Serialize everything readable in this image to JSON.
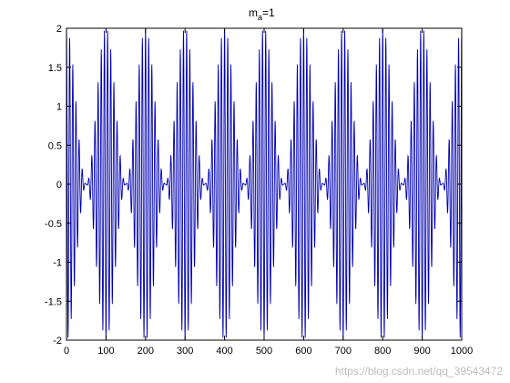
{
  "chart_data": {
    "type": "line",
    "title": "m_a=1",
    "title_main": "m",
    "title_subscript": "a",
    "title_rest": "=1",
    "xlabel": "",
    "ylabel": "",
    "xlim": [
      0,
      1000
    ],
    "ylim": [
      -2,
      2
    ],
    "x_ticks": [
      0,
      100,
      200,
      300,
      400,
      500,
      600,
      700,
      800,
      900,
      1000
    ],
    "x_tick_labels": [
      "0",
      "100",
      "200",
      "300",
      "400",
      "500",
      "600",
      "700",
      "800",
      "900",
      "1000"
    ],
    "y_ticks": [
      2,
      1.5,
      1,
      0.5,
      0,
      -0.5,
      -1,
      -1.5,
      -2
    ],
    "y_tick_labels": [
      "2",
      "1.5",
      "1",
      "0.5",
      "0",
      "-0.5",
      "-1",
      "-1.5",
      "-2"
    ],
    "grid": false,
    "legend": "none",
    "series": [
      {
        "formula": "y = (1 + cos(2*pi*x/100)) * cos(2*pi*x/8)",
        "x_start": 0,
        "x_end": 1000,
        "x_step": 0.5,
        "envelope_period": 100,
        "carrier_period": 8,
        "modulation_index": 1,
        "color": "#0000b3"
      }
    ]
  },
  "watermark": {
    "text": "https://blog.csdn.net/qq_39543472"
  }
}
